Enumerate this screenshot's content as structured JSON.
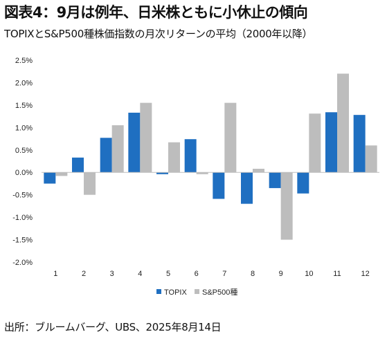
{
  "title": "図表4：9月は例年、日米株ともに小休止の傾向",
  "subtitle": "TOPIXとS&P500種株価指数の月次リターンの平均（2000年以降）",
  "source": "出所：ブルームバーグ、UBS、2025年8月14日",
  "colors": {
    "topix": "#1f6fc1",
    "sp500": "#bdbdbd"
  },
  "chart_data": {
    "type": "bar",
    "categories": [
      "1",
      "2",
      "3",
      "4",
      "5",
      "6",
      "7",
      "8",
      "9",
      "10",
      "11",
      "12"
    ],
    "series": [
      {
        "name": "TOPIX",
        "values": [
          -0.25,
          0.33,
          0.77,
          1.33,
          -0.04,
          0.74,
          -0.59,
          -0.7,
          -0.35,
          -0.47,
          1.34,
          1.28
        ]
      },
      {
        "name": "S&P500種",
        "values": [
          -0.08,
          -0.5,
          1.05,
          1.55,
          0.67,
          -0.04,
          1.55,
          0.08,
          -1.5,
          1.31,
          2.2,
          0.6
        ]
      }
    ],
    "ylim": [
      -2.0,
      2.5
    ],
    "yticks": [
      -2.0,
      -1.5,
      -1.0,
      -0.5,
      0.0,
      0.5,
      1.0,
      1.5,
      2.0,
      2.5
    ],
    "ytick_labels": [
      "-2.0%",
      "-1.5%",
      "-1.0%",
      "-0.5%",
      "0.0%",
      "0.5%",
      "1.0%",
      "1.5%",
      "2.0%",
      "2.5%"
    ],
    "xlabel": "",
    "ylabel": "",
    "legend_position": "bottom-center",
    "grid": false
  }
}
